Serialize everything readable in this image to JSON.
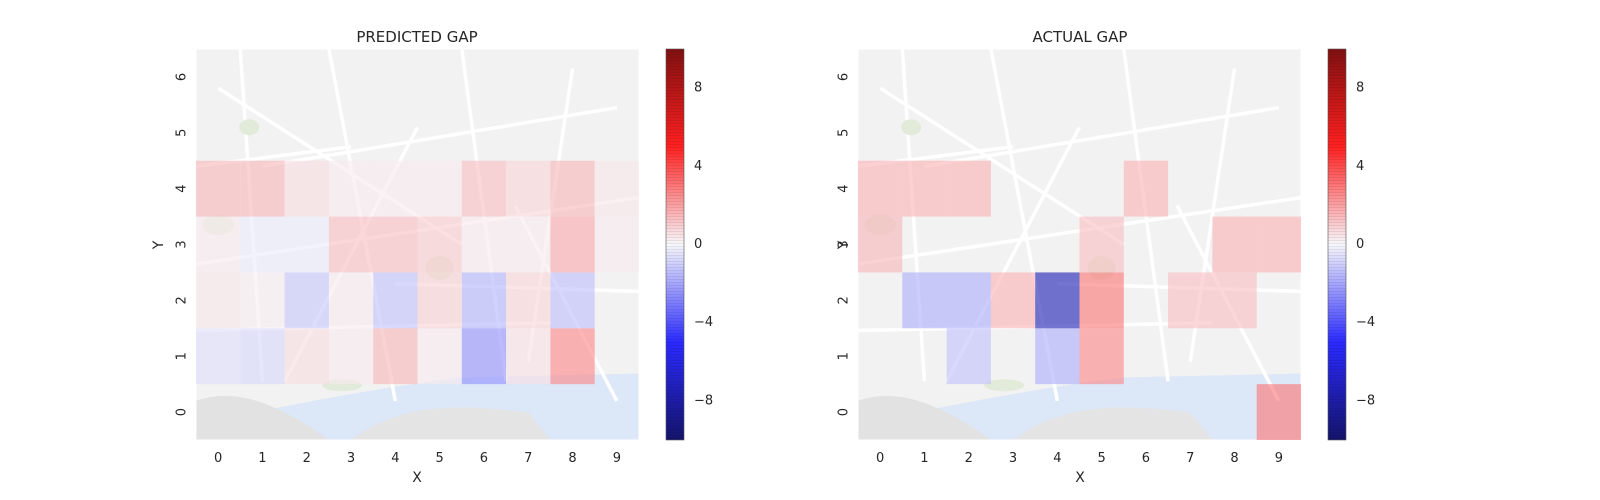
{
  "chart_data": [
    {
      "type": "heatmap",
      "title": "PREDICTED GAP",
      "xlabel": "X",
      "ylabel": "Y",
      "x": [
        0,
        1,
        2,
        3,
        4,
        5,
        6,
        7,
        8,
        9
      ],
      "y": [
        0,
        1,
        2,
        3,
        4,
        5,
        6
      ],
      "xlim": [
        -0.5,
        9.5
      ],
      "ylim": [
        -0.5,
        6.5
      ],
      "colorbar": {
        "range": [
          -10,
          10
        ],
        "ticks": [
          8,
          4,
          0,
          -4,
          -8
        ],
        "tick_labels": [
          "8",
          "4",
          "0",
          "−4",
          "−8"
        ]
      },
      "colormap": "seismic",
      "background": "street map",
      "cells": [
        {
          "x": 0,
          "y": 1,
          "v": -0.6
        },
        {
          "x": 1,
          "y": 1,
          "v": -0.8
        },
        {
          "x": 2,
          "y": 1,
          "v": 0.6
        },
        {
          "x": 3,
          "y": 1,
          "v": 0.3
        },
        {
          "x": 4,
          "y": 1,
          "v": 1.5
        },
        {
          "x": 5,
          "y": 1,
          "v": 0.3
        },
        {
          "x": 6,
          "y": 1,
          "v": -2.5
        },
        {
          "x": 7,
          "y": 1,
          "v": 0.5
        },
        {
          "x": 8,
          "y": 1,
          "v": 2.6
        },
        {
          "x": 0,
          "y": 2,
          "v": 0.4
        },
        {
          "x": 1,
          "y": 2,
          "v": 0.2
        },
        {
          "x": 2,
          "y": 2,
          "v": -1.2
        },
        {
          "x": 3,
          "y": 2,
          "v": 0.3
        },
        {
          "x": 4,
          "y": 2,
          "v": -1.3
        },
        {
          "x": 5,
          "y": 2,
          "v": 0.9
        },
        {
          "x": 6,
          "y": 2,
          "v": -1.6
        },
        {
          "x": 7,
          "y": 2,
          "v": 0.8
        },
        {
          "x": 8,
          "y": 2,
          "v": -1.4
        },
        {
          "x": 0,
          "y": 3,
          "v": 0.3
        },
        {
          "x": 1,
          "y": 3,
          "v": -0.3
        },
        {
          "x": 2,
          "y": 3,
          "v": -0.3
        },
        {
          "x": 3,
          "y": 3,
          "v": 1.3
        },
        {
          "x": 4,
          "y": 3,
          "v": 1.3
        },
        {
          "x": 5,
          "y": 3,
          "v": 1.0
        },
        {
          "x": 6,
          "y": 3,
          "v": 0.3
        },
        {
          "x": 7,
          "y": 3,
          "v": 0.3
        },
        {
          "x": 8,
          "y": 3,
          "v": 1.8
        },
        {
          "x": 9,
          "y": 3,
          "v": 0.3
        },
        {
          "x": 0,
          "y": 4,
          "v": 1.5
        },
        {
          "x": 1,
          "y": 4,
          "v": 1.5
        },
        {
          "x": 2,
          "y": 4,
          "v": 0.6
        },
        {
          "x": 3,
          "y": 4,
          "v": 0.3
        },
        {
          "x": 4,
          "y": 4,
          "v": 0.3
        },
        {
          "x": 5,
          "y": 4,
          "v": 0.3
        },
        {
          "x": 6,
          "y": 4,
          "v": 1.3
        },
        {
          "x": 7,
          "y": 4,
          "v": 0.8
        },
        {
          "x": 8,
          "y": 4,
          "v": 1.5
        },
        {
          "x": 9,
          "y": 4,
          "v": 0.4
        }
      ]
    },
    {
      "type": "heatmap",
      "title": "ACTUAL GAP",
      "xlabel": "X",
      "ylabel": "Y",
      "x": [
        0,
        1,
        2,
        3,
        4,
        5,
        6,
        7,
        8,
        9
      ],
      "y": [
        0,
        1,
        2,
        3,
        4,
        5,
        6
      ],
      "xlim": [
        -0.5,
        9.5
      ],
      "ylim": [
        -0.5,
        6.5
      ],
      "colorbar": {
        "range": [
          -10,
          10
        ],
        "ticks": [
          8,
          4,
          0,
          -4,
          -8
        ],
        "tick_labels": [
          "8",
          "4",
          "0",
          "−4",
          "−8"
        ]
      },
      "colormap": "seismic",
      "background": "street map",
      "cells": [
        {
          "x": 9,
          "y": 0,
          "v": 3.0
        },
        {
          "x": 2,
          "y": 1,
          "v": -1.3
        },
        {
          "x": 4,
          "y": 1,
          "v": -1.8
        },
        {
          "x": 5,
          "y": 1,
          "v": 2.6
        },
        {
          "x": 1,
          "y": 2,
          "v": -1.8
        },
        {
          "x": 2,
          "y": 2,
          "v": -1.8
        },
        {
          "x": 3,
          "y": 2,
          "v": 1.6
        },
        {
          "x": 4,
          "y": 2,
          "v": -7.5
        },
        {
          "x": 5,
          "y": 2,
          "v": 3.0
        },
        {
          "x": 7,
          "y": 2,
          "v": 1.3
        },
        {
          "x": 8,
          "y": 2,
          "v": 1.3
        },
        {
          "x": 0,
          "y": 3,
          "v": 1.5
        },
        {
          "x": 5,
          "y": 3,
          "v": 1.3
        },
        {
          "x": 8,
          "y": 3,
          "v": 1.6
        },
        {
          "x": 9,
          "y": 3,
          "v": 1.6
        },
        {
          "x": 0,
          "y": 4,
          "v": 1.6
        },
        {
          "x": 1,
          "y": 4,
          "v": 1.6
        },
        {
          "x": 2,
          "y": 4,
          "v": 1.6
        },
        {
          "x": 6,
          "y": 4,
          "v": 1.6
        }
      ]
    }
  ]
}
